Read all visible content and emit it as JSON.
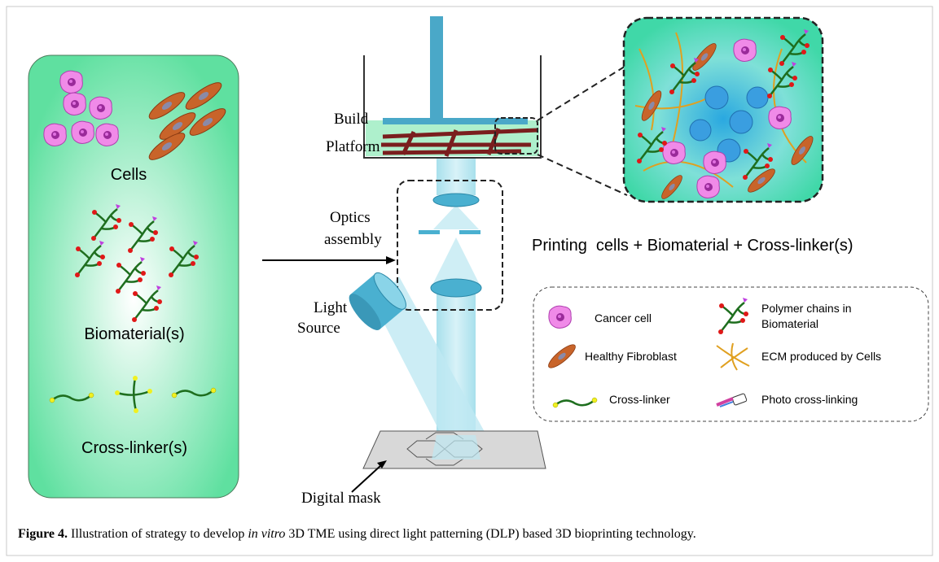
{
  "figure": {
    "panel": {
      "cells": "Cells",
      "biomaterials": "Biomaterial(s)",
      "crosslinkers": "Cross-linker(s)"
    },
    "labels": {
      "build_platform": [
        "Build",
        "Platform"
      ],
      "optics_assembly": [
        "Optics",
        "assembly"
      ],
      "light_source": [
        "Light",
        "Source"
      ],
      "digital_mask": "Digital mask",
      "printing": "Printing  cells + Biomaterial + Cross-linker(s)"
    },
    "legend": {
      "cancer_cell": "Cancer cell",
      "polymer_chains": [
        "Polymer chains in",
        "Biomaterial"
      ],
      "healthy_fibroblast": "Healthy Fibroblast",
      "ecm": "ECM produced by Cells",
      "crosslinker": "Cross-linker",
      "photo_crosslinking": "Photo cross-linking"
    },
    "caption": {
      "label": "Figure 4.",
      "before": " Illustration of strategy to develop ",
      "italic": "in vitro",
      "after": " 3D TME using direct light patterning (DLP) based 3D bioprinting technology."
    }
  }
}
